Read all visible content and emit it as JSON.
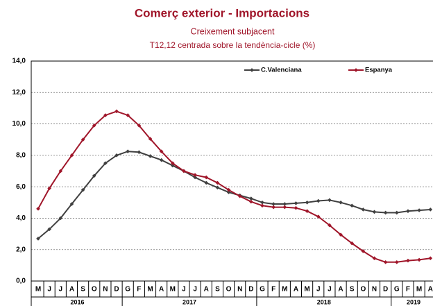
{
  "chart_data": {
    "type": "line",
    "title": "Comerç exterior - Importacions",
    "subtitle": "Creixement subjacent",
    "subtitle2": "T12,12 centrada sobre la tendència-cicle (%)",
    "categories": [
      "M",
      "J",
      "J",
      "A",
      "S",
      "O",
      "N",
      "D",
      "G",
      "F",
      "M",
      "A",
      "M",
      "J",
      "J",
      "A",
      "S",
      "O",
      "N",
      "D",
      "G",
      "F",
      "M",
      "A",
      "M",
      "J",
      "J",
      "A",
      "S",
      "O",
      "N",
      "D",
      "G",
      "F",
      "M",
      "A"
    ],
    "years": [
      "2016",
      "2017",
      "2018",
      "2019"
    ],
    "series": [
      {
        "name": "C.Valenciana",
        "color": "#404040",
        "values": [
          2.7,
          3.3,
          4.0,
          4.9,
          5.8,
          6.7,
          7.5,
          8.0,
          8.25,
          8.2,
          7.95,
          7.7,
          7.35,
          7.0,
          6.6,
          6.25,
          5.95,
          5.65,
          5.45,
          5.25,
          5.0,
          4.9,
          4.9,
          4.95,
          5.0,
          5.1,
          5.15,
          5.0,
          4.8,
          4.55,
          4.4,
          4.35,
          4.35,
          4.45,
          4.5,
          4.55
        ]
      },
      {
        "name": "Espanya",
        "color": "#a0162a",
        "values": [
          4.6,
          5.9,
          7.0,
          8.0,
          9.0,
          9.9,
          10.55,
          10.8,
          10.55,
          9.9,
          9.05,
          8.25,
          7.5,
          7.0,
          6.75,
          6.6,
          6.25,
          5.8,
          5.4,
          5.05,
          4.8,
          4.7,
          4.7,
          4.65,
          4.45,
          4.1,
          3.55,
          2.95,
          2.4,
          1.9,
          1.45,
          1.2,
          1.2,
          1.3,
          1.35,
          1.45
        ]
      }
    ],
    "ylim": [
      0,
      14
    ],
    "yticks": [
      {
        "value": 0,
        "label": "0,0"
      },
      {
        "value": 2,
        "label": "2,0"
      },
      {
        "value": 4,
        "label": "4,0"
      },
      {
        "value": 6,
        "label": "6,0"
      },
      {
        "value": 8,
        "label": "8,0"
      },
      {
        "value": 10,
        "label": "10,0"
      },
      {
        "value": 12,
        "label": "12,0"
      },
      {
        "value": 14,
        "label": "14,0"
      }
    ],
    "grid": true
  }
}
